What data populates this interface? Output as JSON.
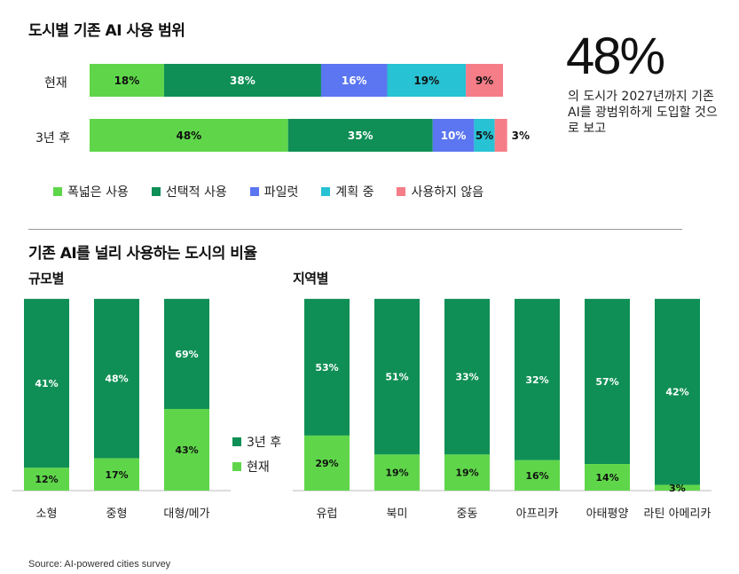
{
  "title": "도시별 기존 AI 사용 범위",
  "highlight": {
    "value": "48%",
    "text": "의 도시가 2027년까지 기존 AI를 광범위하게 도입할 것으로 보고"
  },
  "colors": {
    "wide": "#5fd64a",
    "selective": "#0f8f55",
    "pilot": "#5b76f0",
    "planning": "#27c2d3",
    "none": "#f57d88"
  },
  "legend": [
    {
      "label": "폭넓은 사용",
      "key": "wide"
    },
    {
      "label": "선택적 사용",
      "key": "selective"
    },
    {
      "label": "파일럿",
      "key": "pilot"
    },
    {
      "label": "계획 중",
      "key": "planning"
    },
    {
      "label": "사용하지 않음",
      "key": "none"
    }
  ],
  "section2_title": "기존 AI를 널리 사용하는 도시의 비율",
  "subtitles": {
    "size": "규모별",
    "region": "지역별"
  },
  "legend2": [
    {
      "label": "3년 후",
      "key": "selective"
    },
    {
      "label": "현재",
      "key": "wide"
    }
  ],
  "source": "Source: AI-powered cities survey",
  "chart_data": [
    {
      "type": "bar",
      "orientation": "horizontal",
      "stacked": true,
      "title": "도시별 기존 AI 사용 범위",
      "categories": [
        "현재",
        "3년 후"
      ],
      "series": [
        {
          "name": "폭넓은 사용",
          "values": [
            18,
            48
          ],
          "labels": [
            "18%",
            "48%"
          ]
        },
        {
          "name": "선택적 사용",
          "values": [
            38,
            35
          ],
          "labels": [
            "38%",
            "35%"
          ]
        },
        {
          "name": "파일럿",
          "values": [
            16,
            10
          ],
          "labels": [
            "16%",
            "10%"
          ]
        },
        {
          "name": "계획 중",
          "values": [
            19,
            5
          ],
          "labels": [
            "19%",
            "5%"
          ]
        },
        {
          "name": "사용하지 않음",
          "values": [
            9,
            3
          ],
          "labels": [
            "9%",
            "3%"
          ]
        }
      ],
      "legend_position": "bottom"
    },
    {
      "type": "bar",
      "stacked": true,
      "title": "규모별",
      "categories": [
        "소형",
        "중형",
        "대형/메가"
      ],
      "series": [
        {
          "name": "현재",
          "values": [
            12,
            17,
            43
          ],
          "labels": [
            "12%",
            "17%",
            "43%"
          ]
        },
        {
          "name": "3년 후",
          "values": [
            41,
            48,
            69
          ],
          "labels": [
            "41%",
            "48%",
            "69%"
          ]
        }
      ]
    },
    {
      "type": "bar",
      "stacked": true,
      "title": "지역별",
      "categories": [
        "유럽",
        "북미",
        "중동",
        "아프리카",
        "아태평양",
        "라틴 아메리카"
      ],
      "series": [
        {
          "name": "현재",
          "values": [
            29,
            19,
            19,
            16,
            14,
            3
          ],
          "labels": [
            "29%",
            "19%",
            "19%",
            "16%",
            "14%",
            "3%"
          ]
        },
        {
          "name": "3년 후",
          "values": [
            53,
            51,
            33,
            32,
            57,
            42
          ],
          "labels": [
            "53%",
            "51%",
            "33%",
            "32%",
            "57%",
            "42%"
          ]
        }
      ]
    }
  ]
}
